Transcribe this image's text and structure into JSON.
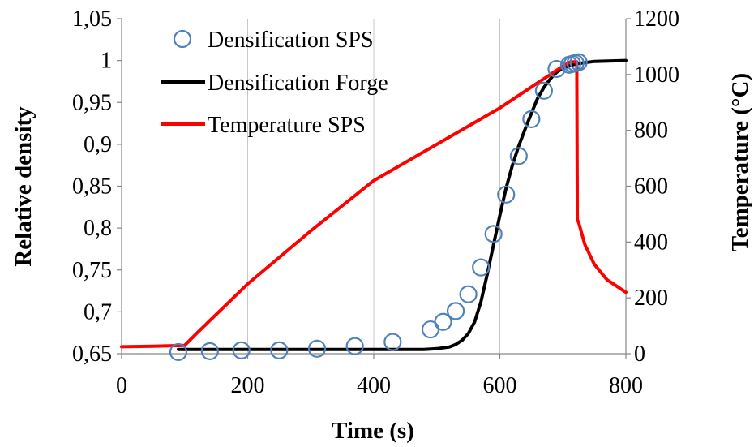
{
  "chart_data": {
    "type": "line",
    "xlabel": "Time (s)",
    "ylabel_left": "Relative density",
    "ylabel_right": "Temperature (°C)",
    "xlim": [
      0,
      800
    ],
    "ylim_left": [
      0.65,
      1.05
    ],
    "ylim_right": [
      0,
      1200
    ],
    "x_ticks": [
      0,
      200,
      400,
      600,
      800
    ],
    "x_tick_labels": [
      "0",
      "200",
      "400",
      "600",
      "800"
    ],
    "y_left_ticks": [
      0.65,
      0.7,
      0.75,
      0.8,
      0.85,
      0.9,
      0.95,
      1.0,
      1.05
    ],
    "y_left_tick_labels": [
      "0,65",
      "0,7",
      "0,75",
      "0,8",
      "0,85",
      "0,9",
      "0,95",
      "1",
      "1,05"
    ],
    "y_right_ticks": [
      0,
      200,
      400,
      600,
      800,
      1000,
      1200
    ],
    "y_right_tick_labels": [
      "0",
      "200",
      "400",
      "600",
      "800",
      "1000",
      "1200"
    ],
    "grid": "vertical",
    "legend_position": "top-left",
    "series": [
      {
        "name": "Densification SPS",
        "kind": "scatter",
        "axis": "left",
        "color": "#4f81bd",
        "x": [
          90,
          140,
          190,
          250,
          310,
          370,
          430,
          490,
          510,
          530,
          550,
          570,
          590,
          610,
          630,
          650,
          670,
          690,
          710,
          715,
          720,
          725
        ],
        "y": [
          0.652,
          0.653,
          0.654,
          0.654,
          0.656,
          0.659,
          0.664,
          0.679,
          0.688,
          0.701,
          0.721,
          0.753,
          0.793,
          0.84,
          0.886,
          0.93,
          0.964,
          0.99,
          0.995,
          0.996,
          0.997,
          0.998
        ]
      },
      {
        "name": "Densification Forge",
        "kind": "line",
        "axis": "left",
        "color": "#000000",
        "x": [
          90,
          200,
          300,
          400,
          480,
          500,
          520,
          530,
          540,
          550,
          560,
          570,
          580,
          590,
          600,
          610,
          620,
          630,
          640,
          650,
          660,
          670,
          680,
          690,
          700,
          720,
          750,
          800
        ],
        "y": [
          0.655,
          0.655,
          0.655,
          0.655,
          0.655,
          0.656,
          0.658,
          0.661,
          0.666,
          0.674,
          0.688,
          0.712,
          0.745,
          0.78,
          0.815,
          0.848,
          0.875,
          0.898,
          0.918,
          0.937,
          0.955,
          0.968,
          0.978,
          0.986,
          0.991,
          0.996,
          0.999,
          1.0
        ]
      },
      {
        "name": "Temperature SPS",
        "kind": "line",
        "axis": "right",
        "color": "#ff0000",
        "x": [
          0,
          50,
          100,
          120,
          200,
          300,
          400,
          500,
          600,
          700,
          712,
          722,
          723,
          725,
          735,
          750,
          770,
          800
        ],
        "y": [
          25,
          27,
          30,
          75,
          250,
          440,
          620,
          750,
          880,
          1030,
          1045,
          1045,
          480,
          470,
          390,
          320,
          265,
          220
        ]
      }
    ]
  }
}
